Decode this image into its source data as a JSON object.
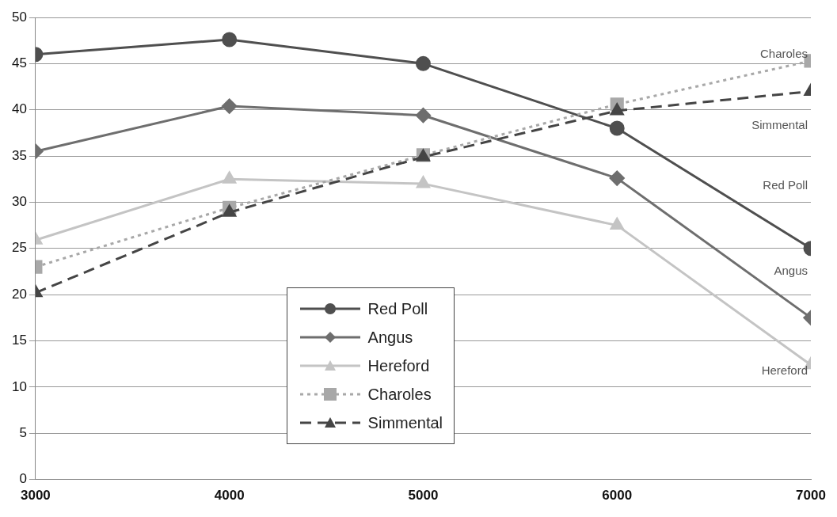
{
  "chart_data": {
    "type": "line",
    "x": [
      3000,
      4000,
      5000,
      6000,
      7000
    ],
    "xlim": [
      3000,
      7000
    ],
    "xticks": [
      3000,
      4000,
      5000,
      6000,
      7000
    ],
    "ylim": [
      0,
      50
    ],
    "yticks": [
      0,
      5,
      10,
      15,
      20,
      25,
      30,
      35,
      40,
      45,
      50
    ],
    "grid": "y",
    "legend": "bottom",
    "series": [
      {
        "name": "Red Poll",
        "color": "#4f4f4f",
        "marker": "circle",
        "line_style": "solid",
        "values": [
          46,
          47.6,
          45,
          38,
          25
        ]
      },
      {
        "name": "Angus",
        "color": "#6e6e6e",
        "marker": "diamond",
        "line_style": "solid",
        "values": [
          35.5,
          40.4,
          39.4,
          32.6,
          17.5
        ]
      },
      {
        "name": "Hereford",
        "color": "#c4c4c4",
        "marker": "triangle",
        "line_style": "solid",
        "values": [
          25.9,
          32.5,
          32,
          27.5,
          12.4
        ]
      },
      {
        "name": "Charoles",
        "color": "#a8a8a8",
        "marker": "square",
        "line_style": "dotted",
        "values": [
          23,
          29.4,
          35.1,
          40.6,
          45.3
        ]
      },
      {
        "name": "Simmental",
        "color": "#454545",
        "marker": "triangle",
        "line_style": "dashed",
        "values": [
          20.2,
          28.9,
          34.9,
          39.9,
          42
        ]
      }
    ],
    "annotations": [
      "Charoles",
      "Simmental",
      "Red Poll",
      "Angus",
      "Hereford"
    ]
  }
}
